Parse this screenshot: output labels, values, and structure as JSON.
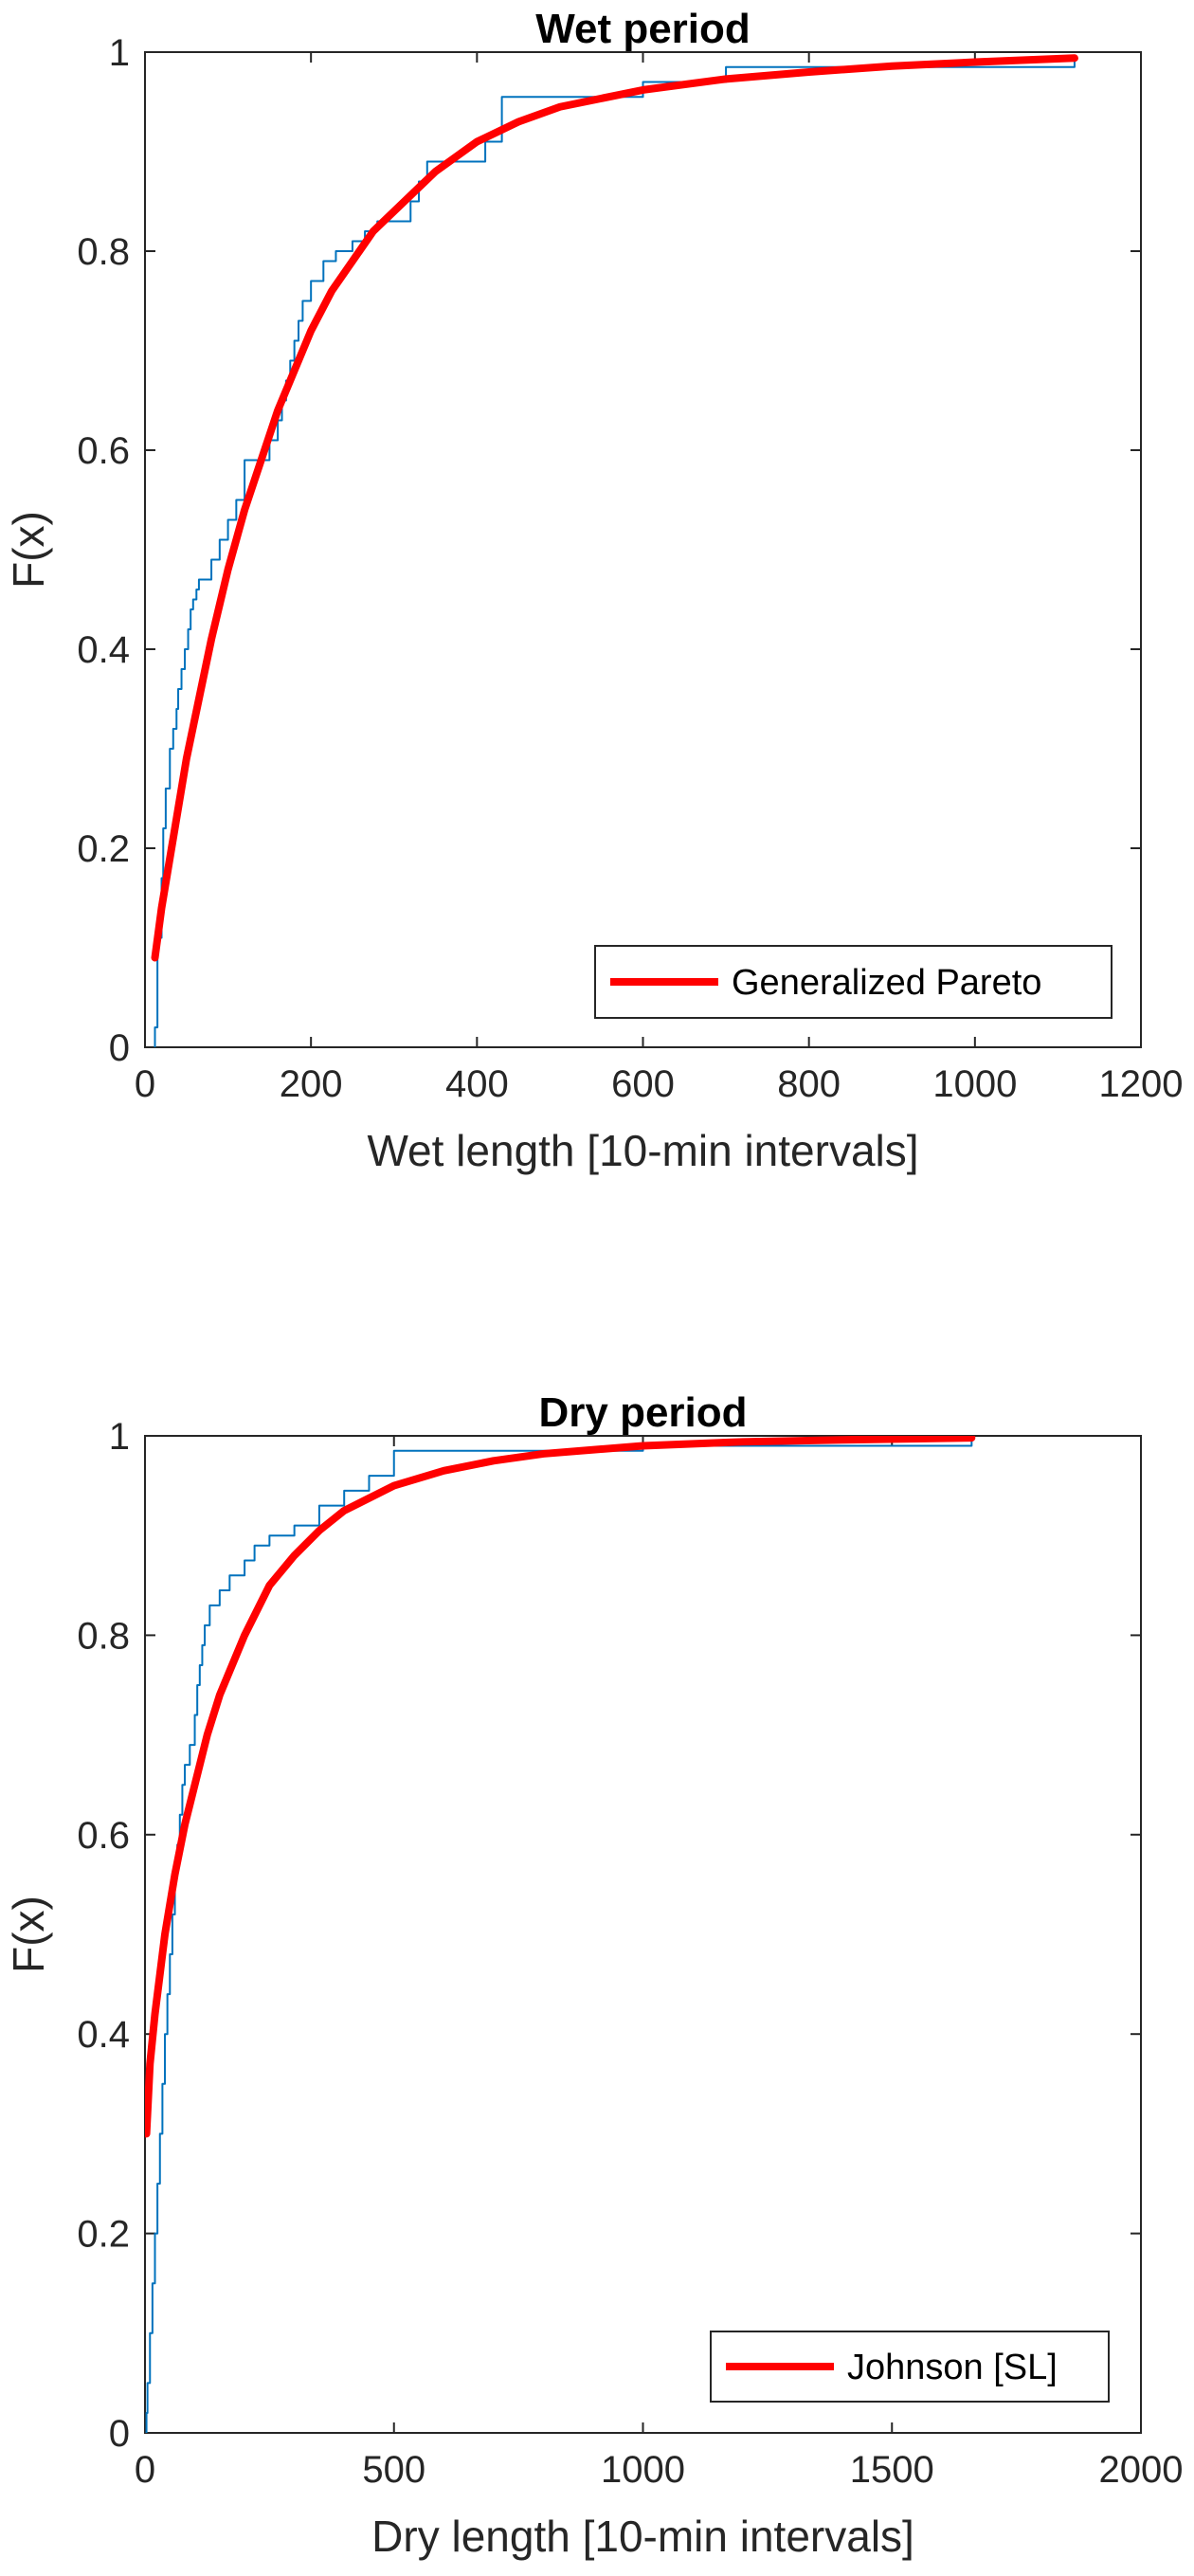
{
  "chart_data": [
    {
      "type": "line",
      "title": "Wet period",
      "xlabel": "Wet length [10-min intervals]",
      "ylabel": "F(x)",
      "xlim": [
        0,
        1200
      ],
      "ylim": [
        0,
        1
      ],
      "xticks": [
        0,
        200,
        400,
        600,
        800,
        1000,
        1200
      ],
      "yticks": [
        0,
        0.2,
        0.4,
        0.6,
        0.8,
        1
      ],
      "xticklabels": [
        "0",
        "200",
        "400",
        "600",
        "800",
        "1000",
        "1200"
      ],
      "yticklabels": [
        "0",
        "0.2",
        "0.4",
        "0.6",
        "0.8",
        "1"
      ],
      "legend_position": "bottom-right",
      "grid": false,
      "series": [
        {
          "style": "stairs",
          "color": "#0072BD",
          "x": [
            12,
            15,
            20,
            22,
            25,
            30,
            34,
            38,
            40,
            44,
            48,
            52,
            55,
            58,
            62,
            65,
            70,
            80,
            90,
            100,
            110,
            120,
            130,
            150,
            160,
            165,
            170,
            175,
            180,
            185,
            190,
            200,
            215,
            230,
            250,
            265,
            280,
            300,
            320,
            330,
            340,
            360,
            380,
            410,
            430,
            500,
            560,
            600,
            700,
            1120
          ],
          "y": [
            0.02,
            0.11,
            0.17,
            0.22,
            0.26,
            0.3,
            0.32,
            0.34,
            0.36,
            0.38,
            0.4,
            0.42,
            0.44,
            0.45,
            0.46,
            0.47,
            0.47,
            0.49,
            0.51,
            0.53,
            0.55,
            0.59,
            0.59,
            0.61,
            0.63,
            0.65,
            0.67,
            0.69,
            0.71,
            0.73,
            0.75,
            0.77,
            0.79,
            0.8,
            0.81,
            0.82,
            0.83,
            0.83,
            0.85,
            0.87,
            0.89,
            0.89,
            0.89,
            0.91,
            0.955,
            0.955,
            0.955,
            0.97,
            0.985,
            0.99
          ]
        },
        {
          "name": "Generalized Pareto",
          "style": "line",
          "color": "#FF0000",
          "x": [
            12,
            20,
            30,
            40,
            50,
            60,
            70,
            80,
            100,
            120,
            140,
            160,
            180,
            200,
            225,
            250,
            275,
            300,
            350,
            400,
            450,
            500,
            600,
            700,
            800,
            900,
            1000,
            1120
          ],
          "y": [
            0.09,
            0.14,
            0.19,
            0.24,
            0.29,
            0.33,
            0.37,
            0.41,
            0.48,
            0.54,
            0.59,
            0.64,
            0.68,
            0.72,
            0.76,
            0.79,
            0.82,
            0.84,
            0.88,
            0.91,
            0.93,
            0.945,
            0.962,
            0.973,
            0.98,
            0.986,
            0.99,
            0.994
          ]
        }
      ]
    },
    {
      "type": "line",
      "title": "Dry period",
      "xlabel": "Dry length [10-min intervals]",
      "ylabel": "F(x)",
      "xlim": [
        0,
        2000
      ],
      "ylim": [
        0,
        1
      ],
      "xticks": [
        0,
        500,
        1000,
        1500,
        2000
      ],
      "yticks": [
        0,
        0.2,
        0.4,
        0.6,
        0.8,
        1
      ],
      "xticklabels": [
        "0",
        "500",
        "1000",
        "1500",
        "2000"
      ],
      "yticklabels": [
        "0",
        "0.2",
        "0.4",
        "0.6",
        "0.8",
        "1"
      ],
      "legend_position": "bottom-right",
      "grid": false,
      "series": [
        {
          "style": "stairs",
          "color": "#0072BD",
          "x": [
            3,
            5,
            10,
            15,
            20,
            25,
            30,
            35,
            40,
            45,
            50,
            55,
            60,
            65,
            70,
            75,
            80,
            90,
            100,
            105,
            110,
            115,
            120,
            130,
            150,
            170,
            200,
            220,
            250,
            300,
            350,
            400,
            450,
            500,
            1000,
            1660
          ],
          "y": [
            0.02,
            0.05,
            0.1,
            0.15,
            0.2,
            0.25,
            0.3,
            0.35,
            0.4,
            0.44,
            0.48,
            0.52,
            0.56,
            0.59,
            0.62,
            0.65,
            0.67,
            0.69,
            0.72,
            0.75,
            0.77,
            0.79,
            0.81,
            0.83,
            0.845,
            0.86,
            0.875,
            0.89,
            0.9,
            0.91,
            0.93,
            0.945,
            0.96,
            0.985,
            0.99,
            0.995
          ]
        },
        {
          "name": "Johnson [SL]",
          "style": "line",
          "color": "#FF0000",
          "x": [
            3,
            10,
            20,
            30,
            40,
            50,
            60,
            80,
            100,
            125,
            150,
            175,
            200,
            250,
            300,
            350,
            400,
            500,
            600,
            700,
            800,
            1000,
            1200,
            1400,
            1660
          ],
          "y": [
            0.3,
            0.37,
            0.42,
            0.46,
            0.5,
            0.53,
            0.56,
            0.61,
            0.65,
            0.7,
            0.74,
            0.77,
            0.8,
            0.85,
            0.88,
            0.905,
            0.925,
            0.95,
            0.965,
            0.975,
            0.982,
            0.99,
            0.994,
            0.996,
            0.998
          ]
        }
      ]
    }
  ]
}
